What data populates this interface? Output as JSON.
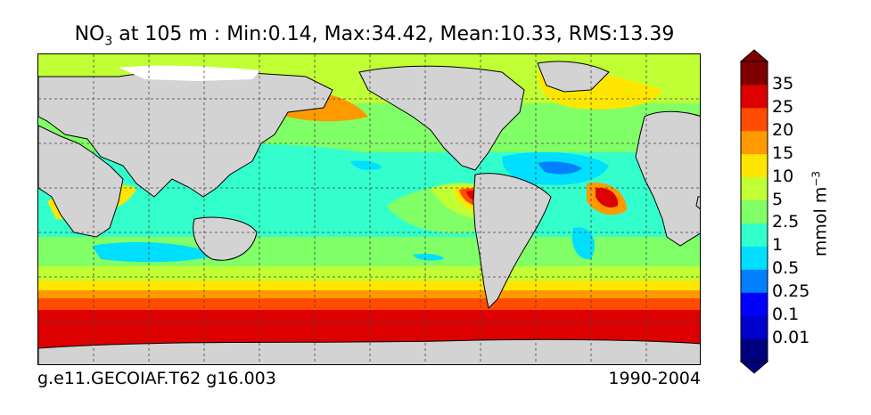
{
  "title": {
    "species": "NO",
    "species_sub": "3",
    "rest": " at 105 m : Min:0.14, Max:34.42, Mean:10.33, RMS:13.39"
  },
  "caption_left": "g.e11.GECOIAF.T62 g16.003",
  "caption_right": "1990-2004",
  "colorbar": {
    "units_base": "mmol m",
    "units_exp": "−3",
    "levels": [
      "0.01",
      "0.1",
      "0.25",
      "0.5",
      "1",
      "2.5",
      "5",
      "10",
      "15",
      "20",
      "25",
      "35"
    ],
    "colors": [
      "#000080",
      "#0000cd",
      "#0000ff",
      "#0080ff",
      "#00dfff",
      "#33ffcc",
      "#80ff66",
      "#c0ff33",
      "#ffe600",
      "#ff9900",
      "#ff4c00",
      "#dd0000",
      "#800000"
    ]
  },
  "colors": {
    "land": "#d3d3d3",
    "ice": "#ffffff",
    "grid": "#444444"
  }
}
